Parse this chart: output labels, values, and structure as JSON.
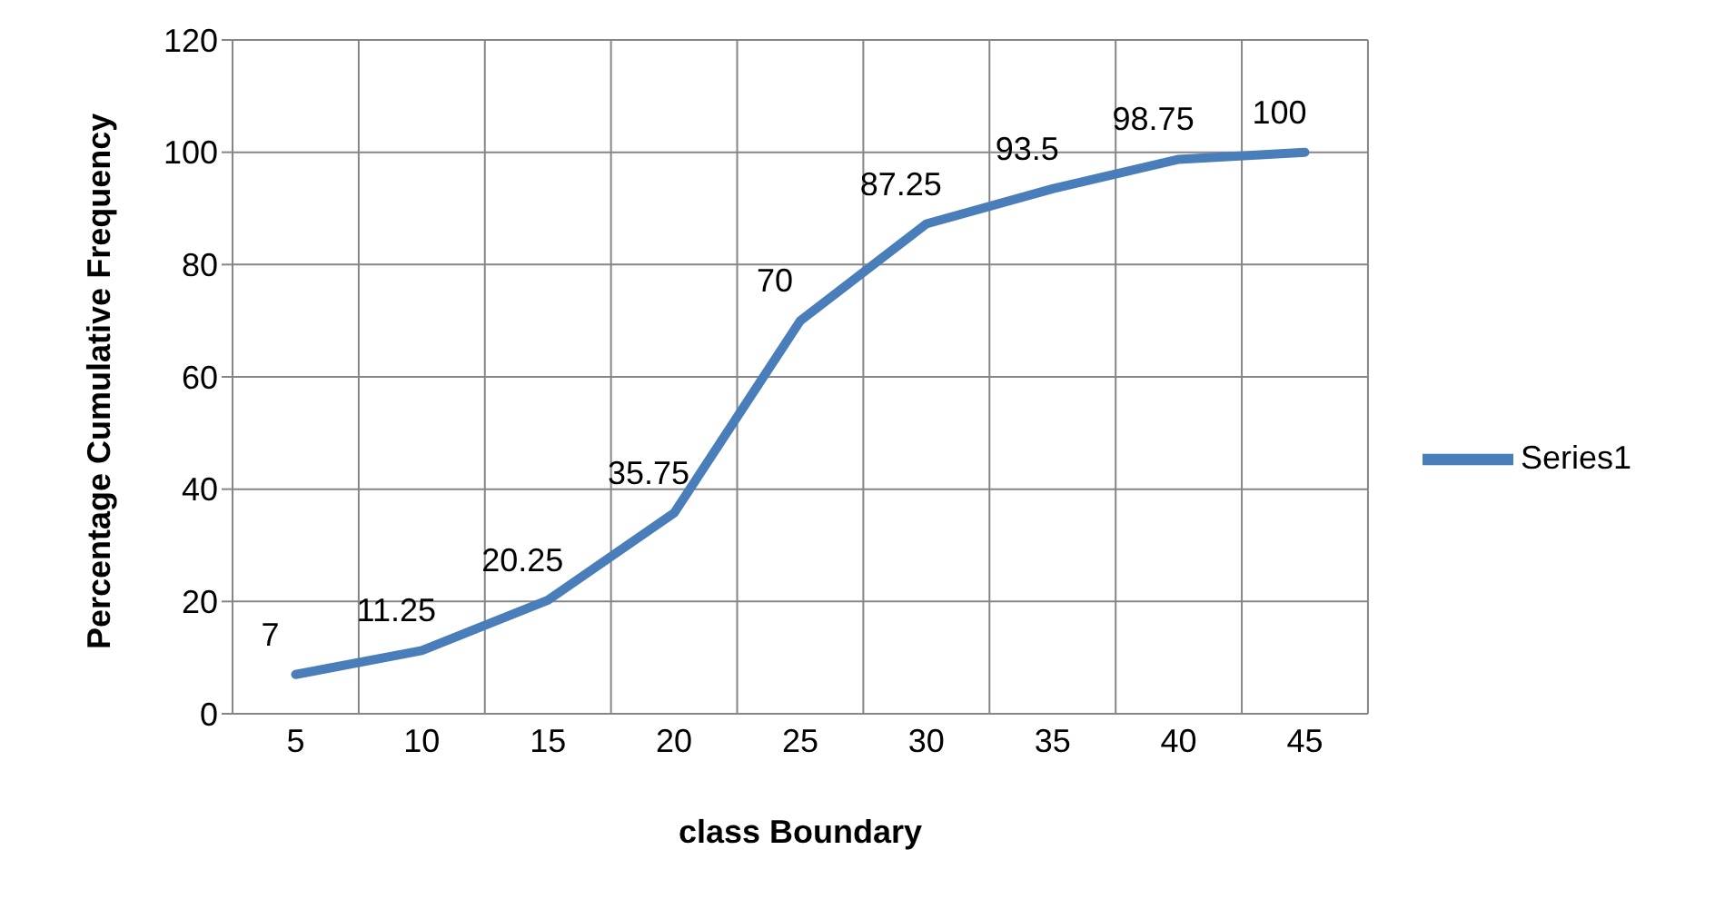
{
  "chart_data": {
    "type": "line",
    "xlabel": "class Boundary",
    "ylabel": "Percentage Cumulative Frequency",
    "categories": [
      "5",
      "10",
      "15",
      "20",
      "25",
      "30",
      "35",
      "40",
      "45"
    ],
    "series": [
      {
        "name": "Series1",
        "color": "#4a7ebb",
        "values": [
          7,
          11.25,
          20.25,
          35.75,
          70,
          87.25,
          93.5,
          98.75,
          100
        ]
      }
    ],
    "ylim": [
      0,
      120
    ],
    "yticks": [
      0,
      20,
      40,
      60,
      80,
      100,
      120
    ],
    "grid": true,
    "legend": "right",
    "data_labels": true,
    "marker": "none",
    "line_style": "solid"
  }
}
